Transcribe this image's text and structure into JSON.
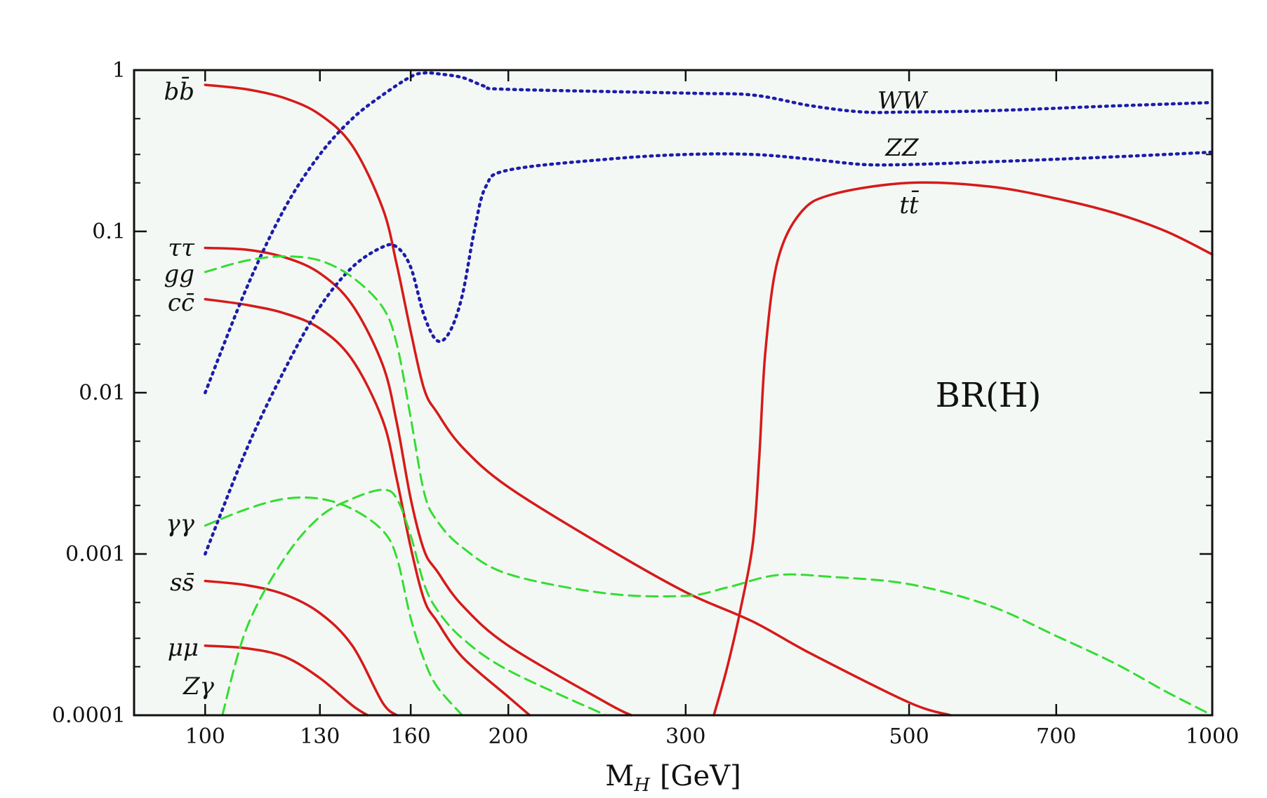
{
  "chart_data": {
    "type": "line",
    "title": "",
    "annotation": "BR(H)",
    "xlabel": "M",
    "xlabel_sub": "H",
    "xlabel_unit": "[GeV]",
    "x_scale": "log",
    "y_scale": "log",
    "xlim": [
      85,
      1000
    ],
    "ylim": [
      0.0001,
      1
    ],
    "grid": false,
    "x_ticks": [
      {
        "value": 100,
        "label": "100"
      },
      {
        "value": 130,
        "label": "130"
      },
      {
        "value": 160,
        "label": "160"
      },
      {
        "value": 200,
        "label": "200"
      },
      {
        "value": 300,
        "label": "300"
      },
      {
        "value": 500,
        "label": "500"
      },
      {
        "value": 700,
        "label": "700"
      },
      {
        "value": 1000,
        "label": "1000"
      }
    ],
    "y_ticks": [
      {
        "value": 1,
        "label": "1"
      },
      {
        "value": 0.1,
        "label": "0.1"
      },
      {
        "value": 0.01,
        "label": "0.01"
      },
      {
        "value": 0.001,
        "label": "0.001"
      },
      {
        "value": 0.0001,
        "label": "0.0001"
      }
    ],
    "colors": {
      "fermion": "#d61a1a",
      "boson": "#1c1cab",
      "loop": "#33dd33",
      "frame": "#111111",
      "background": "#f4f8f4"
    },
    "series": [
      {
        "name": "bb̄",
        "style": "solid",
        "color": "#d61a1a",
        "points": [
          [
            100,
            0.81
          ],
          [
            110,
            0.76
          ],
          [
            120,
            0.67
          ],
          [
            130,
            0.53
          ],
          [
            140,
            0.34
          ],
          [
            150,
            0.14
          ],
          [
            155,
            0.062
          ],
          [
            160,
            0.024
          ],
          [
            165,
            0.0105
          ],
          [
            170,
            0.0075
          ],
          [
            180,
            0.0046
          ],
          [
            200,
            0.0026
          ],
          [
            250,
            0.0011
          ],
          [
            300,
            0.00058
          ],
          [
            350,
            0.00038
          ],
          [
            400,
            0.00024
          ],
          [
            500,
            0.00012
          ],
          [
            550,
            0.0001
          ]
        ]
      },
      {
        "name": "ττ",
        "style": "solid",
        "color": "#d61a1a",
        "points": [
          [
            100,
            0.079
          ],
          [
            110,
            0.077
          ],
          [
            120,
            0.069
          ],
          [
            130,
            0.055
          ],
          [
            140,
            0.035
          ],
          [
            150,
            0.015
          ],
          [
            155,
            0.0065
          ],
          [
            160,
            0.0022
          ],
          [
            165,
            0.00105
          ],
          [
            170,
            0.00078
          ],
          [
            180,
            0.00048
          ],
          [
            200,
            0.00027
          ],
          [
            250,
            0.00012
          ],
          [
            265,
            0.0001
          ]
        ]
      },
      {
        "name": "cc̄",
        "style": "solid",
        "color": "#d61a1a",
        "points": [
          [
            100,
            0.038
          ],
          [
            110,
            0.035
          ],
          [
            120,
            0.031
          ],
          [
            130,
            0.025
          ],
          [
            140,
            0.016
          ],
          [
            150,
            0.0068
          ],
          [
            155,
            0.0029
          ],
          [
            160,
            0.0011
          ],
          [
            165,
            0.00052
          ],
          [
            170,
            0.00038
          ],
          [
            180,
            0.00023
          ],
          [
            200,
            0.00013
          ],
          [
            210,
            0.0001
          ]
        ]
      },
      {
        "name": "ss̄",
        "style": "solid",
        "color": "#d61a1a",
        "points": [
          [
            100,
            0.00068
          ],
          [
            110,
            0.00064
          ],
          [
            120,
            0.00056
          ],
          [
            130,
            0.00043
          ],
          [
            140,
            0.00027
          ],
          [
            150,
            0.00012
          ],
          [
            155,
            0.0001
          ]
        ]
      },
      {
        "name": "μμ",
        "style": "solid",
        "color": "#d61a1a",
        "points": [
          [
            100,
            0.00027
          ],
          [
            110,
            0.00026
          ],
          [
            120,
            0.00023
          ],
          [
            130,
            0.00017
          ],
          [
            140,
            0.000115
          ],
          [
            145,
            0.0001
          ]
        ]
      },
      {
        "name": "tt̄",
        "style": "solid",
        "color": "#d61a1a",
        "points": [
          [
            320,
            0.0001
          ],
          [
            330,
            0.0002
          ],
          [
            340,
            0.00045
          ],
          [
            350,
            0.0012
          ],
          [
            355,
            0.004
          ],
          [
            360,
            0.018
          ],
          [
            370,
            0.065
          ],
          [
            390,
            0.13
          ],
          [
            420,
            0.17
          ],
          [
            500,
            0.2
          ],
          [
            600,
            0.19
          ],
          [
            700,
            0.16
          ],
          [
            800,
            0.13
          ],
          [
            900,
            0.1
          ],
          [
            1000,
            0.072
          ]
        ]
      },
      {
        "name": "WW",
        "style": "dotted",
        "color": "#1c1cab",
        "points": [
          [
            100,
            0.01
          ],
          [
            110,
            0.045
          ],
          [
            120,
            0.14
          ],
          [
            130,
            0.3
          ],
          [
            140,
            0.5
          ],
          [
            150,
            0.7
          ],
          [
            160,
            0.91
          ],
          [
            165,
            0.96
          ],
          [
            170,
            0.95
          ],
          [
            180,
            0.9
          ],
          [
            190,
            0.79
          ],
          [
            200,
            0.76
          ],
          [
            300,
            0.72
          ],
          [
            350,
            0.7
          ],
          [
            400,
            0.6
          ],
          [
            450,
            0.55
          ],
          [
            500,
            0.55
          ],
          [
            600,
            0.56
          ],
          [
            800,
            0.6
          ],
          [
            1000,
            0.63
          ]
        ]
      },
      {
        "name": "ZZ",
        "style": "dotted",
        "color": "#1c1cab",
        "points": [
          [
            100,
            0.001
          ],
          [
            110,
            0.0045
          ],
          [
            120,
            0.014
          ],
          [
            130,
            0.034
          ],
          [
            140,
            0.06
          ],
          [
            150,
            0.08
          ],
          [
            155,
            0.08
          ],
          [
            160,
            0.06
          ],
          [
            165,
            0.03
          ],
          [
            170,
            0.021
          ],
          [
            175,
            0.024
          ],
          [
            180,
            0.04
          ],
          [
            185,
            0.1
          ],
          [
            190,
            0.19
          ],
          [
            200,
            0.24
          ],
          [
            250,
            0.28
          ],
          [
            300,
            0.3
          ],
          [
            350,
            0.3
          ],
          [
            400,
            0.28
          ],
          [
            450,
            0.26
          ],
          [
            500,
            0.26
          ],
          [
            600,
            0.27
          ],
          [
            800,
            0.29
          ],
          [
            1000,
            0.31
          ]
        ]
      },
      {
        "name": "gg",
        "style": "dashed",
        "color": "#33dd33",
        "points": [
          [
            100,
            0.056
          ],
          [
            110,
            0.066
          ],
          [
            120,
            0.07
          ],
          [
            130,
            0.066
          ],
          [
            140,
            0.052
          ],
          [
            150,
            0.034
          ],
          [
            155,
            0.02
          ],
          [
            160,
            0.007
          ],
          [
            165,
            0.0024
          ],
          [
            170,
            0.0016
          ],
          [
            180,
            0.0011
          ],
          [
            200,
            0.00075
          ],
          [
            250,
            0.00057
          ],
          [
            300,
            0.00055
          ],
          [
            330,
            0.00062
          ],
          [
            370,
            0.00074
          ],
          [
            420,
            0.00072
          ],
          [
            500,
            0.00065
          ],
          [
            600,
            0.00048
          ],
          [
            700,
            0.00031
          ],
          [
            800,
            0.00021
          ],
          [
            900,
            0.00014
          ],
          [
            1000,
            0.0001
          ]
        ]
      },
      {
        "name": "γγ",
        "style": "dashed",
        "color": "#33dd33",
        "points": [
          [
            100,
            0.0015
          ],
          [
            110,
            0.0019
          ],
          [
            120,
            0.0022
          ],
          [
            130,
            0.0022
          ],
          [
            140,
            0.0019
          ],
          [
            150,
            0.0014
          ],
          [
            155,
            0.00095
          ],
          [
            160,
            0.0004
          ],
          [
            165,
            0.00022
          ],
          [
            170,
            0.00015
          ],
          [
            180,
            0.0001
          ]
        ]
      },
      {
        "name": "Zγ",
        "style": "dashed",
        "color": "#33dd33",
        "points": [
          [
            104,
            0.0001
          ],
          [
            110,
            0.00035
          ],
          [
            120,
            0.00095
          ],
          [
            130,
            0.0017
          ],
          [
            140,
            0.0022
          ],
          [
            150,
            0.0025
          ],
          [
            155,
            0.0022
          ],
          [
            160,
            0.0013
          ],
          [
            165,
            0.00065
          ],
          [
            170,
            0.00045
          ],
          [
            180,
            0.0003
          ],
          [
            200,
            0.00019
          ],
          [
            250,
            0.0001
          ]
        ]
      }
    ],
    "series_labels": [
      {
        "series": "WW",
        "text": "WW"
      },
      {
        "series": "ZZ",
        "text": "ZZ"
      },
      {
        "series": "tt̄",
        "text": "tt̄"
      },
      {
        "series": "bb̄",
        "text": "bb̄"
      },
      {
        "series": "ττ",
        "text": "ττ"
      },
      {
        "series": "gg",
        "text": "gg"
      },
      {
        "series": "cc̄",
        "text": "cc̄"
      },
      {
        "series": "γγ",
        "text": "γγ"
      },
      {
        "series": "ss̄",
        "text": "ss̄"
      },
      {
        "series": "μμ",
        "text": "μμ"
      },
      {
        "series": "Zγ",
        "text": "Zγ"
      }
    ]
  }
}
